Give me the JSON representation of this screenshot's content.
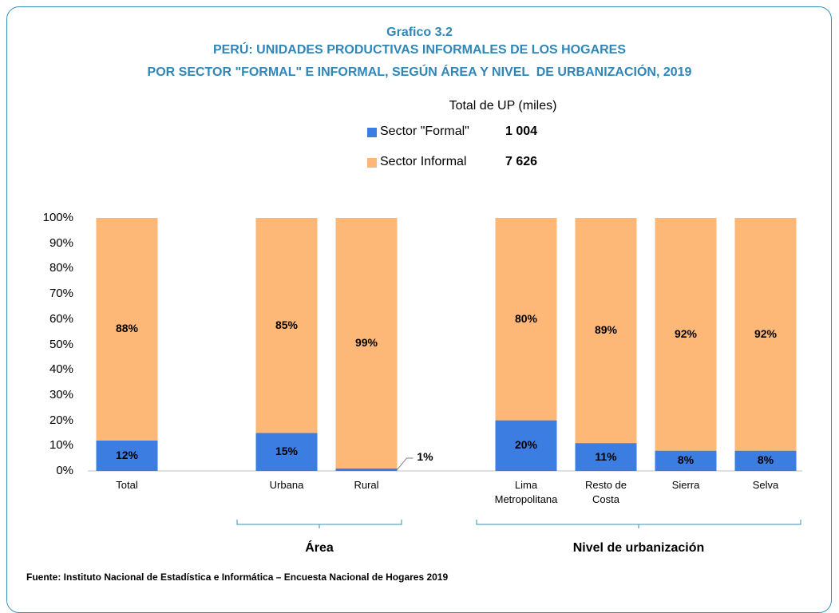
{
  "chart_data": {
    "type": "stacked_bar_percent",
    "label": "Grafico 3.2",
    "title_lines": [
      "PERÚ: UNIDADES PRODUCTIVAS INFORMALES DE LOS HOGARES",
      "POR SECTOR \"FORMAL\" E INFORMAL, SEGÚN ÁREA Y NIVEL  DE URBANIZACIÓN, 2019"
    ],
    "legend_title": "Total de UP (miles)",
    "categories": [
      "Total",
      null,
      "Urbana",
      "Rural",
      null,
      "Lima\nMetropolitana",
      "Resto de\nCosta",
      "Sierra",
      "Selva"
    ],
    "group_labels": [
      null,
      "Área",
      "Nivel de urbanización"
    ],
    "series": [
      {
        "name": "Sector \"Formal\"",
        "color": "#3b7de0",
        "total": {
          "value": 1004,
          "label": "1 004"
        },
        "values": [
          12,
          null,
          15,
          1,
          null,
          20,
          11,
          8,
          8
        ],
        "value_labels": [
          "12%",
          null,
          "15%",
          "1%",
          null,
          "20%",
          "11%",
          "8%",
          "8%"
        ]
      },
      {
        "name": "Sector Informal",
        "color": "#fdb877",
        "total": {
          "value": 7626,
          "label": "7 626"
        },
        "values": [
          88,
          null,
          85,
          99,
          null,
          80,
          89,
          92,
          92
        ],
        "value_labels": [
          "88%",
          null,
          "85%",
          "99%",
          null,
          "80%",
          "89%",
          "92%",
          "92%"
        ]
      }
    ],
    "ylim": [
      0,
      100
    ],
    "yticks": [
      {
        "value": 0,
        "label": "0%"
      },
      {
        "value": 10,
        "label": "10%"
      },
      {
        "value": 20,
        "label": "20%"
      },
      {
        "value": 30,
        "label": "30%"
      },
      {
        "value": 40,
        "label": "40%"
      },
      {
        "value": 50,
        "label": "50%"
      },
      {
        "value": 60,
        "label": "60%"
      },
      {
        "value": 70,
        "label": "70%"
      },
      {
        "value": 80,
        "label": "80%"
      },
      {
        "value": 90,
        "label": "90%"
      },
      {
        "value": 100,
        "label": "100%"
      }
    ],
    "source": "Fuente: Instituto Nacional de Estadística e Informática – Encuesta Nacional de Hogares 2019"
  }
}
